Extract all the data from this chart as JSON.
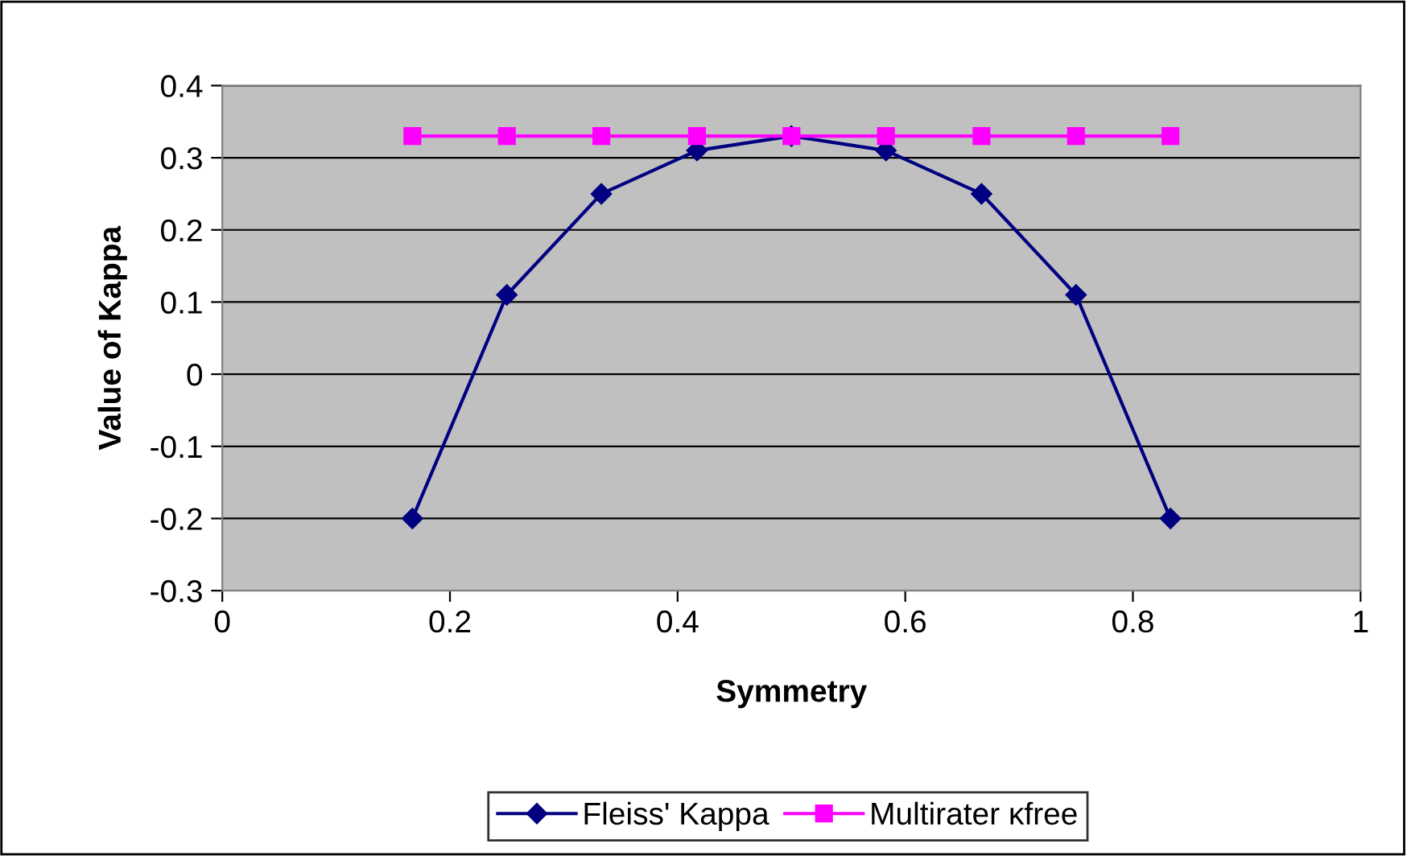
{
  "chart_data": {
    "type": "line",
    "xlabel": "Symmetry",
    "ylabel": "Value of Kappa",
    "x": [
      0.167,
      0.25,
      0.333,
      0.417,
      0.5,
      0.583,
      0.667,
      0.75,
      0.833
    ],
    "series": [
      {
        "name": "Fleiss' Kappa",
        "color": "#000080",
        "marker": "diamond",
        "values": [
          -0.2,
          0.11,
          0.25,
          0.31,
          0.33,
          0.31,
          0.25,
          0.11,
          -0.2
        ]
      },
      {
        "name": "Multirater κfree",
        "color": "#ff00ff",
        "marker": "square",
        "values": [
          0.33,
          0.33,
          0.33,
          0.33,
          0.33,
          0.33,
          0.33,
          0.33,
          0.33
        ]
      }
    ],
    "xlim": [
      0,
      1
    ],
    "xticks": [
      0,
      0.2,
      0.4,
      0.6,
      0.8,
      1
    ],
    "ylim": [
      -0.3,
      0.4
    ],
    "yticks": [
      -0.3,
      -0.2,
      -0.1,
      0,
      0.1,
      0.2,
      0.3,
      0.4
    ],
    "grid": "y",
    "legend": "bottom",
    "line_style": "solid"
  }
}
